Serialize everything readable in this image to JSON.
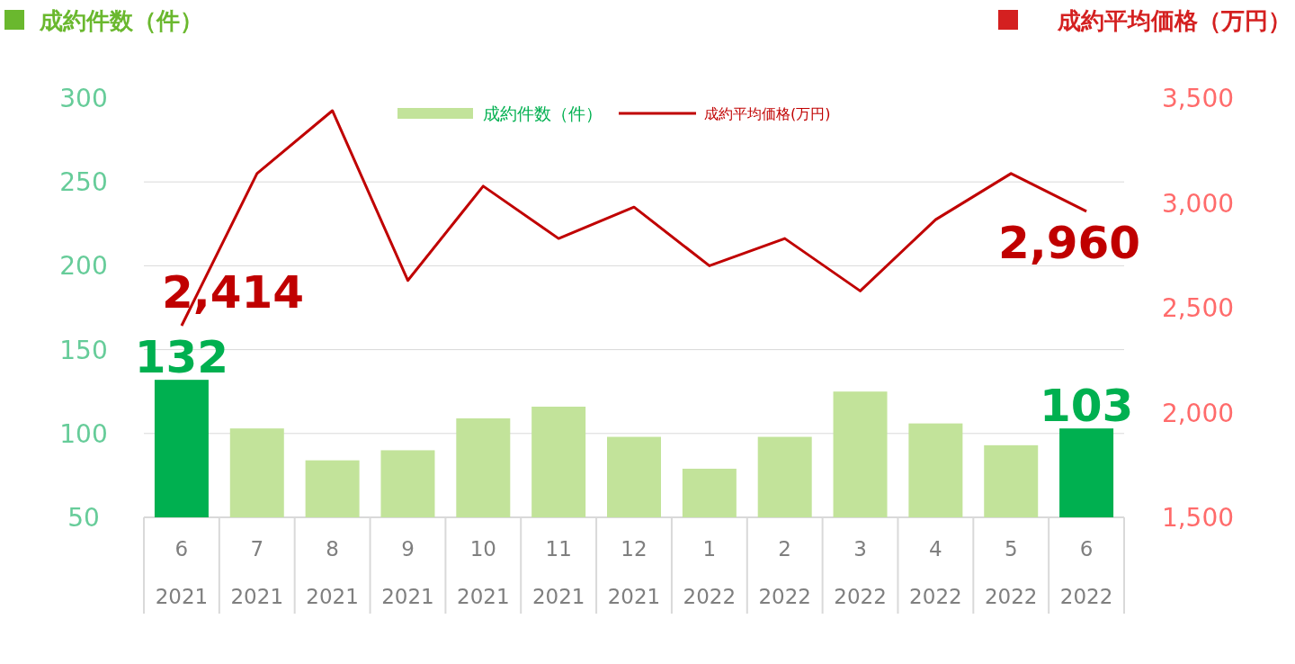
{
  "chart_data": {
    "type": "bar",
    "ylabel": "成約件数（件）",
    "y2label": "成約平均価格（万円）",
    "categories": [
      "6 2021",
      "7 2021",
      "8 2021",
      "9 2021",
      "10 2021",
      "11 2021",
      "12 2021",
      "1 2022",
      "2 2022",
      "3 2022",
      "4 2022",
      "5 2022",
      "6 2022"
    ],
    "series": [
      {
        "name": "成約件数（件）",
        "color": "#c2e39a",
        "colors": [
          "#00b050",
          "#c2e39a",
          "#c2e39a",
          "#c2e39a",
          "#c2e39a",
          "#c2e39a",
          "#c2e39a",
          "#c2e39a",
          "#c2e39a",
          "#c2e39a",
          "#c2e39a",
          "#c2e39a",
          "#00b050"
        ],
        "values": [
          132,
          103,
          84,
          90,
          109,
          116,
          98,
          79,
          98,
          125,
          106,
          93,
          103
        ],
        "value_labels": [
          "132",
          null,
          null,
          null,
          null,
          null,
          null,
          null,
          null,
          null,
          null,
          null,
          "103"
        ]
      },
      {
        "name": "成約平均価格(万円)",
        "type": "line",
        "axis": "y2",
        "color": "#c00000",
        "values": [
          2414,
          3140,
          3440,
          2630,
          3080,
          2830,
          2980,
          2700,
          2830,
          2580,
          2920,
          3140,
          2960
        ],
        "value_labels": [
          "2,414",
          null,
          null,
          null,
          null,
          null,
          null,
          null,
          null,
          null,
          null,
          null,
          "2,960"
        ]
      }
    ],
    "ylim": [
      50,
      300
    ],
    "yticks": [
      50,
      100,
      150,
      200,
      250,
      300
    ],
    "y2lim": [
      1500,
      3500
    ],
    "y2ticks": [
      {
        "value": 1500,
        "label": "1,500"
      },
      {
        "value": 2000,
        "label": "2,000"
      },
      {
        "value": 2500,
        "label": "2,500"
      },
      {
        "value": 3000,
        "label": "3,000"
      },
      {
        "value": 3500,
        "label": "3,500"
      }
    ],
    "grid": "y",
    "legend": "top"
  }
}
